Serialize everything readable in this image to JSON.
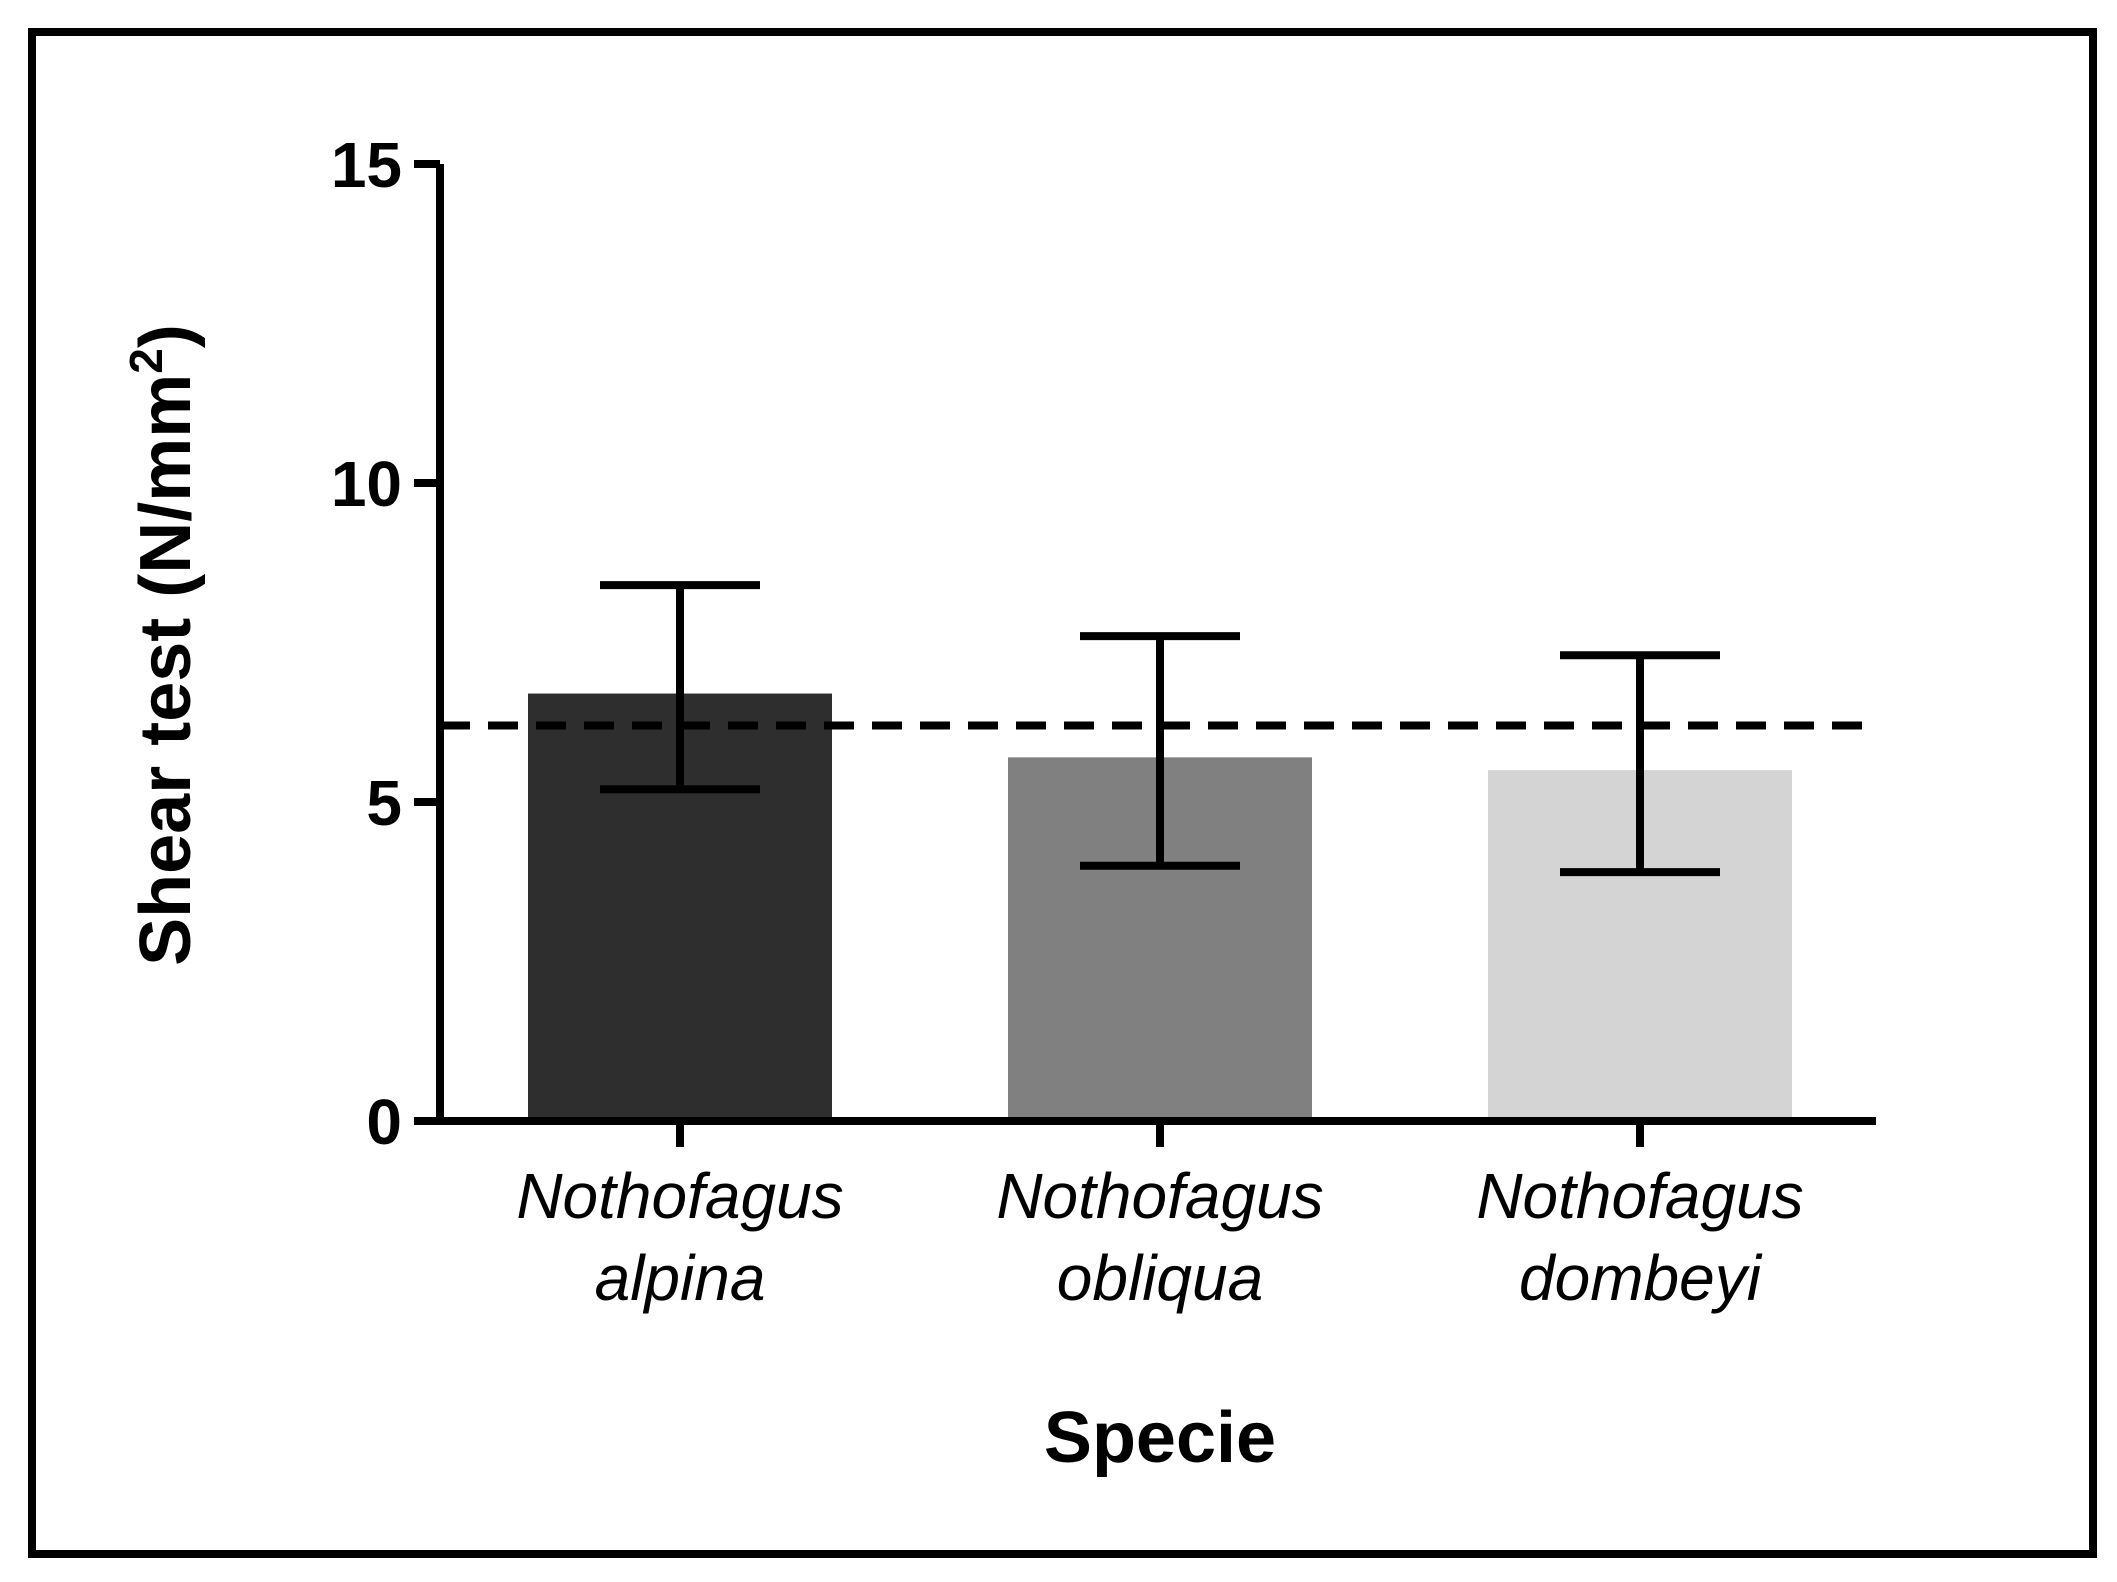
{
  "chart_data": {
    "type": "bar",
    "categories": [
      [
        "Nothofagus",
        "alpina"
      ],
      [
        "Nothofagus",
        "obliqua"
      ],
      [
        "Nothofagus",
        "dombeyi"
      ]
    ],
    "values": [
      6.7,
      5.7,
      5.5
    ],
    "error_upper": [
      8.4,
      7.6,
      7.3
    ],
    "error_lower": [
      5.2,
      4.0,
      3.9
    ],
    "bar_colors": [
      "#2e2e2e",
      "#808080",
      "#d4d4d4"
    ],
    "reference_line": 6.2,
    "yticks": [
      "0",
      "5",
      "10",
      "15"
    ],
    "ytick_values": [
      0,
      5,
      10,
      15
    ],
    "ylim": [
      0,
      15
    ],
    "xlabel": "Specie",
    "ylabel": "Shear test (N/mm",
    "ylabel_superscript": "2",
    "ylabel_close": ")",
    "grid": false
  }
}
